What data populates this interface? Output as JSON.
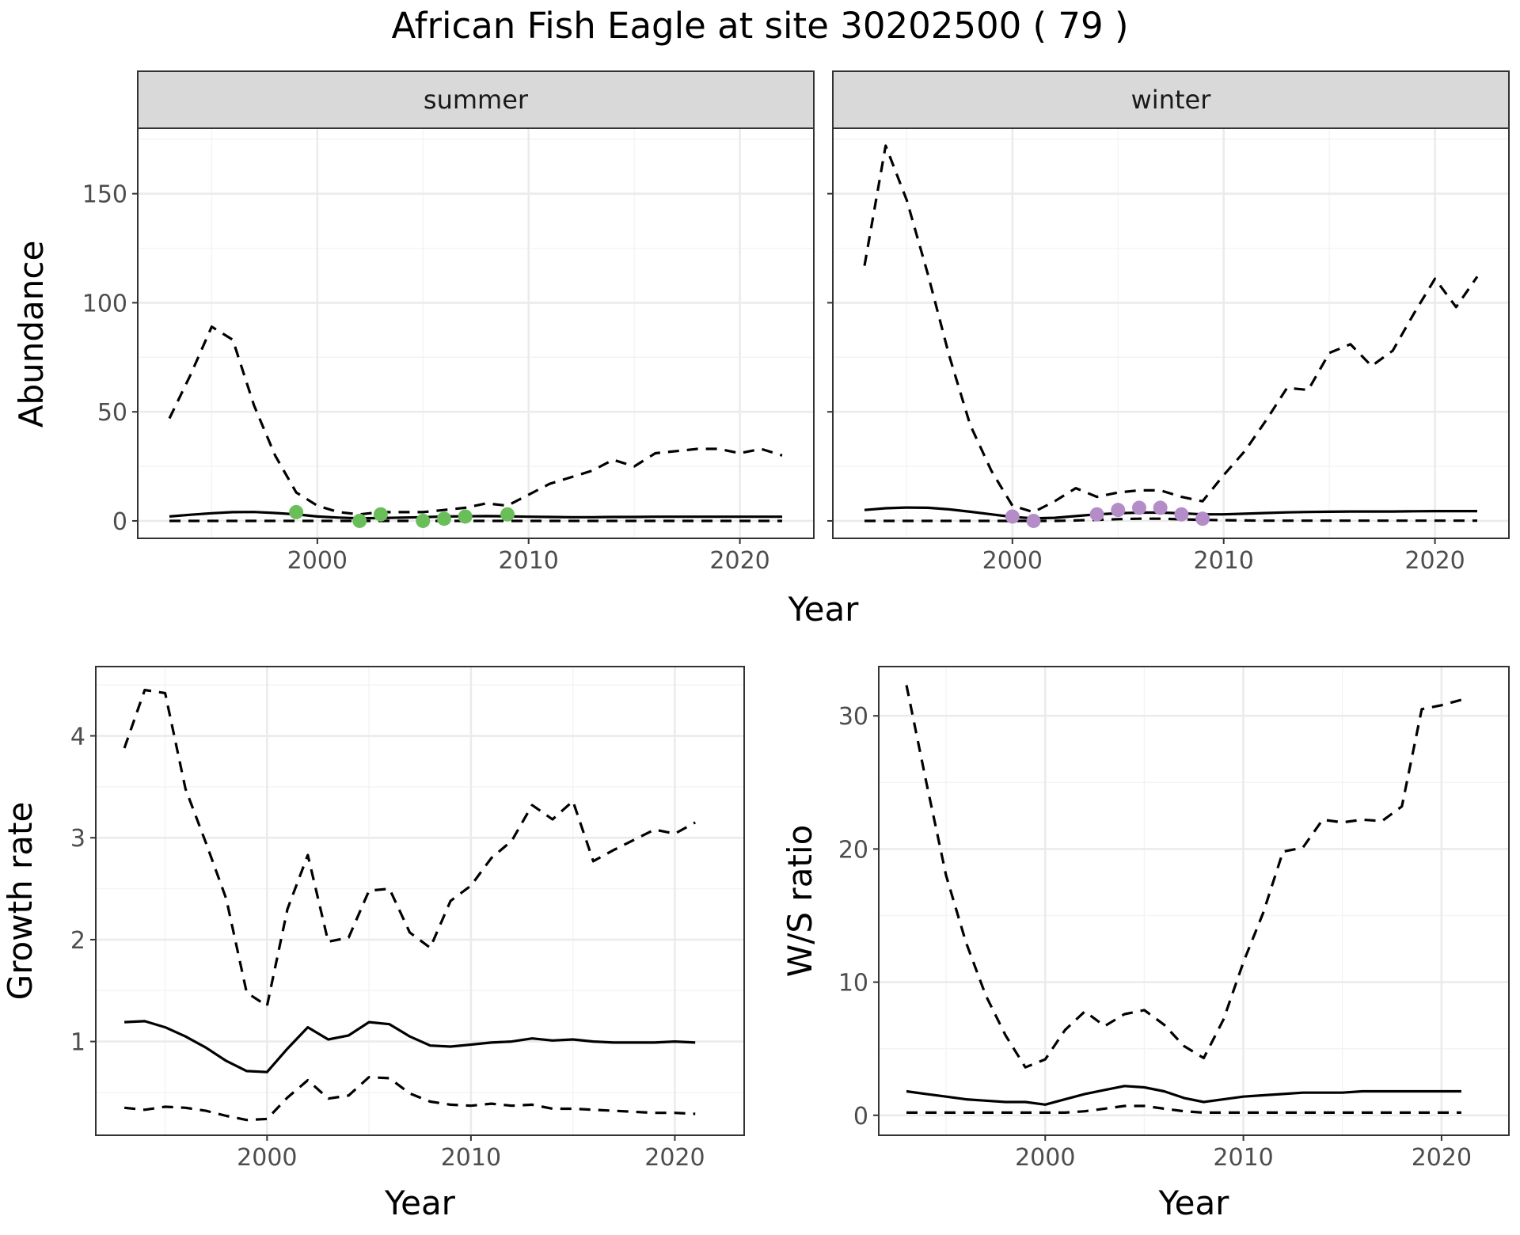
{
  "figure": {
    "title": "African Fish Eagle at site 30202500 ( 79 )",
    "colors": {
      "summer_points": "#6abe5a",
      "winter_points": "#b48cc8",
      "lines": "#000000",
      "strip_background": "#d9d9d9"
    }
  },
  "chart_data": [
    {
      "type": "line",
      "facet": "summer",
      "xlabel": "Year",
      "ylabel": "Abundance",
      "xlim": [
        1991.5,
        2023.5
      ],
      "ylim": [
        -8,
        180
      ],
      "xticks": [
        2000,
        2010,
        2020
      ],
      "yticks": [
        0,
        50,
        100,
        150
      ],
      "grid": true,
      "series": [
        {
          "style": "solid",
          "x": [
            1993,
            1994,
            1995,
            1996,
            1997,
            1998,
            1999,
            2000,
            2001,
            2002,
            2003,
            2004,
            2005,
            2006,
            2007,
            2008,
            2009,
            2010,
            2011,
            2012,
            2013,
            2014,
            2015,
            2016,
            2017,
            2018,
            2019,
            2020,
            2021,
            2022
          ],
          "y": [
            2,
            2.8,
            3.5,
            4,
            4.1,
            3.6,
            3,
            2,
            1.5,
            1.2,
            1.3,
            1.5,
            1.7,
            2,
            2.1,
            2.2,
            2.1,
            1.9,
            1.8,
            1.7,
            1.7,
            1.8,
            1.8,
            1.9,
            1.9,
            1.9,
            1.9,
            1.9,
            1.9,
            1.9
          ]
        },
        {
          "style": "dashed",
          "x": [
            1993,
            1994,
            1995,
            1996,
            1997,
            1998,
            1999,
            2000,
            2001,
            2002,
            2003,
            2004,
            2005,
            2006,
            2007,
            2008,
            2009,
            2010,
            2011,
            2012,
            2013,
            2014,
            2015,
            2016,
            2017,
            2018,
            2019,
            2020,
            2021,
            2022
          ],
          "y": [
            47,
            67,
            89,
            83,
            53,
            30,
            13,
            7,
            4,
            3,
            4,
            4,
            4,
            5,
            6,
            8,
            7,
            12,
            17,
            20,
            23,
            28,
            25,
            31,
            32,
            33,
            33,
            31,
            33,
            30
          ]
        },
        {
          "style": "dashed",
          "x": [
            1993,
            1994,
            1995,
            1996,
            1997,
            1998,
            1999,
            2000,
            2001,
            2002,
            2003,
            2004,
            2005,
            2006,
            2007,
            2008,
            2009,
            2010,
            2011,
            2012,
            2013,
            2014,
            2015,
            2016,
            2017,
            2018,
            2019,
            2020,
            2021,
            2022
          ],
          "y": [
            0,
            0,
            0,
            0,
            0,
            0,
            0,
            0,
            0,
            0,
            0,
            0,
            0,
            0,
            0,
            0,
            0,
            0,
            0,
            0,
            0,
            0,
            0,
            0,
            0,
            0,
            0,
            0,
            0,
            0
          ]
        }
      ],
      "points": {
        "x": [
          1999,
          2002,
          2003,
          2005,
          2006,
          2007,
          2009
        ],
        "y": [
          4,
          0,
          3,
          0,
          1,
          2,
          3
        ]
      }
    },
    {
      "type": "line",
      "facet": "winter",
      "xlabel": "Year",
      "ylabel": "Abundance",
      "xlim": [
        1991.5,
        2023.5
      ],
      "ylim": [
        -8,
        180
      ],
      "xticks": [
        2000,
        2010,
        2020
      ],
      "yticks": [
        0,
        50,
        100,
        150
      ],
      "grid": true,
      "series": [
        {
          "style": "solid",
          "x": [
            1993,
            1994,
            1995,
            1996,
            1997,
            1998,
            1999,
            2000,
            2001,
            2002,
            2003,
            2004,
            2005,
            2006,
            2007,
            2008,
            2009,
            2010,
            2011,
            2012,
            2013,
            2014,
            2015,
            2016,
            2017,
            2018,
            2019,
            2020,
            2021,
            2022
          ],
          "y": [
            5,
            5.8,
            6.1,
            6,
            5.3,
            4.2,
            3,
            1.8,
            1.2,
            1.4,
            2.2,
            3,
            3.5,
            3.8,
            3.8,
            3.5,
            3,
            3,
            3.3,
            3.6,
            3.9,
            4.1,
            4.2,
            4.3,
            4.3,
            4.3,
            4.4,
            4.5,
            4.5,
            4.5
          ]
        },
        {
          "style": "dashed",
          "x": [
            1993,
            1994,
            1995,
            1996,
            1997,
            1998,
            1999,
            2000,
            2001,
            2002,
            2003,
            2004,
            2005,
            2006,
            2007,
            2008,
            2009,
            2010,
            2011,
            2012,
            2013,
            2014,
            2015,
            2016,
            2017,
            2018,
            2019,
            2020,
            2021,
            2022
          ],
          "y": [
            117,
            172,
            147,
            113,
            76,
            44,
            23,
            7,
            4,
            9,
            15,
            11,
            13,
            14,
            14,
            11,
            9,
            21,
            32,
            46,
            61,
            60,
            77,
            81,
            71,
            78,
            95,
            111,
            98,
            112
          ]
        },
        {
          "style": "dashed",
          "x": [
            1993,
            1994,
            1995,
            1996,
            1997,
            1998,
            1999,
            2000,
            2001,
            2002,
            2003,
            2004,
            2005,
            2006,
            2007,
            2008,
            2009,
            2010,
            2011,
            2012,
            2013,
            2014,
            2015,
            2016,
            2017,
            2018,
            2019,
            2020,
            2021,
            2022
          ],
          "y": [
            0,
            0,
            0,
            0,
            0,
            0,
            0,
            0,
            0,
            0,
            0.2,
            0.5,
            0.8,
            1,
            1,
            0.7,
            0.5,
            0.3,
            0.2,
            0.1,
            0.1,
            0.1,
            0.1,
            0.1,
            0.1,
            0.1,
            0.1,
            0.1,
            0.1,
            0.1
          ]
        }
      ],
      "points": {
        "x": [
          2000,
          2001,
          2004,
          2005,
          2006,
          2007,
          2008,
          2009
        ],
        "y": [
          2,
          0,
          3,
          5,
          6,
          6,
          3,
          1
        ]
      }
    },
    {
      "type": "line",
      "xlabel": "Year",
      "ylabel": "Growth rate",
      "xlim": [
        1991.6,
        2023.4
      ],
      "ylim": [
        0.08,
        4.68
      ],
      "xticks": [
        2000,
        2010,
        2020
      ],
      "yticks": [
        1,
        2,
        3,
        4
      ],
      "grid": true,
      "series": [
        {
          "style": "solid",
          "x": [
            1993,
            1994,
            1995,
            1996,
            1997,
            1998,
            1999,
            2000,
            2001,
            2002,
            2003,
            2004,
            2005,
            2006,
            2007,
            2008,
            2009,
            2010,
            2011,
            2012,
            2013,
            2014,
            2015,
            2016,
            2017,
            2018,
            2019,
            2020,
            2021
          ],
          "y": [
            1.19,
            1.2,
            1.14,
            1.05,
            0.94,
            0.81,
            0.71,
            0.7,
            0.93,
            1.14,
            1.02,
            1.06,
            1.19,
            1.17,
            1.05,
            0.96,
            0.95,
            0.97,
            0.99,
            1,
            1.03,
            1.01,
            1.02,
            1,
            0.99,
            0.99,
            0.99,
            1,
            0.99
          ]
        },
        {
          "style": "dashed",
          "x": [
            1993,
            1994,
            1995,
            1996,
            1997,
            1998,
            1999,
            2000,
            2001,
            2002,
            2003,
            2004,
            2005,
            2006,
            2007,
            2008,
            2009,
            2010,
            2011,
            2012,
            2013,
            2014,
            2015,
            2016,
            2017,
            2018,
            2019,
            2020,
            2021
          ],
          "y": [
            3.88,
            4.45,
            4.42,
            3.48,
            2.95,
            2.4,
            1.48,
            1.35,
            2.3,
            2.83,
            1.98,
            2.02,
            2.48,
            2.5,
            2.07,
            1.92,
            2.38,
            2.53,
            2.8,
            2.97,
            3.32,
            3.18,
            3.36,
            2.77,
            2.88,
            2.98,
            3.08,
            3.04,
            3.15
          ]
        },
        {
          "style": "dashed",
          "x": [
            1993,
            1994,
            1995,
            1996,
            1997,
            1998,
            1999,
            2000,
            2001,
            2002,
            2003,
            2004,
            2005,
            2006,
            2007,
            2008,
            2009,
            2010,
            2011,
            2012,
            2013,
            2014,
            2015,
            2016,
            2017,
            2018,
            2019,
            2020,
            2021
          ],
          "y": [
            0.35,
            0.33,
            0.36,
            0.35,
            0.32,
            0.27,
            0.23,
            0.24,
            0.45,
            0.62,
            0.44,
            0.47,
            0.65,
            0.64,
            0.49,
            0.41,
            0.38,
            0.37,
            0.39,
            0.37,
            0.38,
            0.34,
            0.34,
            0.33,
            0.32,
            0.31,
            0.3,
            0.3,
            0.29
          ]
        }
      ]
    },
    {
      "type": "line",
      "xlabel": "Year",
      "ylabel": "W/S ratio",
      "xlim": [
        1991.6,
        2023.4
      ],
      "ylim": [
        -1.5,
        33.7
      ],
      "xticks": [
        2000,
        2010,
        2020
      ],
      "yticks": [
        0,
        10,
        20,
        30
      ],
      "grid": true,
      "series": [
        {
          "style": "solid",
          "x": [
            1993,
            1994,
            1995,
            1996,
            1997,
            1998,
            1999,
            2000,
            2001,
            2002,
            2003,
            2004,
            2005,
            2006,
            2007,
            2008,
            2009,
            2010,
            2011,
            2012,
            2013,
            2014,
            2015,
            2016,
            2017,
            2018,
            2019,
            2020,
            2021
          ],
          "y": [
            1.8,
            1.6,
            1.4,
            1.2,
            1.1,
            1,
            1,
            0.8,
            1.2,
            1.6,
            1.9,
            2.2,
            2.1,
            1.8,
            1.3,
            1,
            1.2,
            1.4,
            1.5,
            1.6,
            1.7,
            1.7,
            1.7,
            1.8,
            1.8,
            1.8,
            1.8,
            1.8,
            1.8
          ]
        },
        {
          "style": "dashed",
          "x": [
            1993,
            1994,
            1995,
            1996,
            1997,
            1998,
            1999,
            2000,
            2001,
            2002,
            2003,
            2004,
            2005,
            2006,
            2007,
            2008,
            2009,
            2010,
            2011,
            2012,
            2013,
            2014,
            2015,
            2016,
            2017,
            2018,
            2019,
            2020,
            2021
          ],
          "y": [
            32.3,
            25,
            18,
            13,
            9,
            6,
            3.6,
            4.2,
            6.4,
            7.8,
            6.7,
            7.6,
            7.9,
            6.8,
            5.2,
            4.3,
            7.2,
            11.5,
            15.2,
            19.8,
            20.1,
            22.2,
            22,
            22.2,
            22.1,
            23.2,
            30.5,
            30.8,
            31.2
          ]
        },
        {
          "style": "dashed",
          "x": [
            1993,
            1994,
            1995,
            1996,
            1997,
            1998,
            1999,
            2000,
            2001,
            2002,
            2003,
            2004,
            2005,
            2006,
            2007,
            2008,
            2009,
            2010,
            2011,
            2012,
            2013,
            2014,
            2015,
            2016,
            2017,
            2018,
            2019,
            2020,
            2021
          ],
          "y": [
            0.2,
            0.2,
            0.2,
            0.2,
            0.2,
            0.2,
            0.2,
            0.2,
            0.2,
            0.3,
            0.5,
            0.7,
            0.7,
            0.5,
            0.3,
            0.2,
            0.2,
            0.2,
            0.2,
            0.2,
            0.2,
            0.2,
            0.2,
            0.2,
            0.2,
            0.2,
            0.2,
            0.2,
            0.2
          ]
        }
      ]
    }
  ]
}
